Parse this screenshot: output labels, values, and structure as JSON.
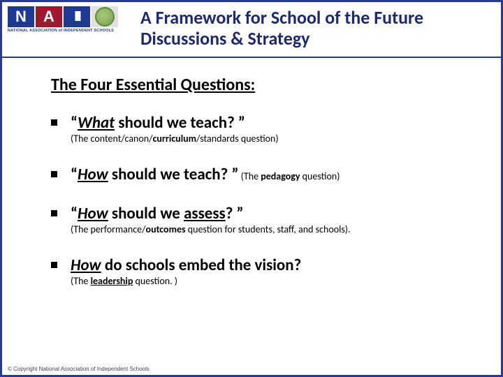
{
  "colors": {
    "border": "#2a3a8f",
    "title": "#1f2a6e",
    "logo_blue": "#1f3a93",
    "logo_red": "#a01830",
    "logo_grey": "#e0e0e0",
    "text": "#000000",
    "background": "#ffffff"
  },
  "logo": {
    "letters": [
      "N",
      "A",
      "III"
    ],
    "subtitle": "NATIONAL ASSOCIATION of INDEPENDENT SCHOOLS"
  },
  "title": "A Framework for School of the Future Discussions & Strategy",
  "subtitle": "The Four Essential Questions:",
  "questions": [
    {
      "main_pre": "“",
      "emph": "What",
      "main_post": " should we teach? ”",
      "sub_pre": "(The content/canon/",
      "sub_bold": "curriculum",
      "sub_post": "/standards question)"
    },
    {
      "main_pre": "“",
      "emph": "How",
      "main_post": " should we teach? ”",
      "inline_sub_pre": " (The ",
      "inline_sub_bold": "pedagogy",
      "inline_sub_post": " question)"
    },
    {
      "main_pre": "“",
      "emph": "How",
      "main_mid": " should we ",
      "uline": "assess",
      "main_post": "? ”",
      "sub_pre": "(The performance/",
      "sub_bold": "outcomes",
      "sub_post": " question for students, staff, and schools)."
    },
    {
      "emph": "How",
      "main_post": " do schools embed the vision?",
      "sub_pre": "(The ",
      "sub_uline": "leadership",
      "sub_post": " question. )"
    }
  ],
  "copyright": "© Copyright National Association of Independent Schools"
}
